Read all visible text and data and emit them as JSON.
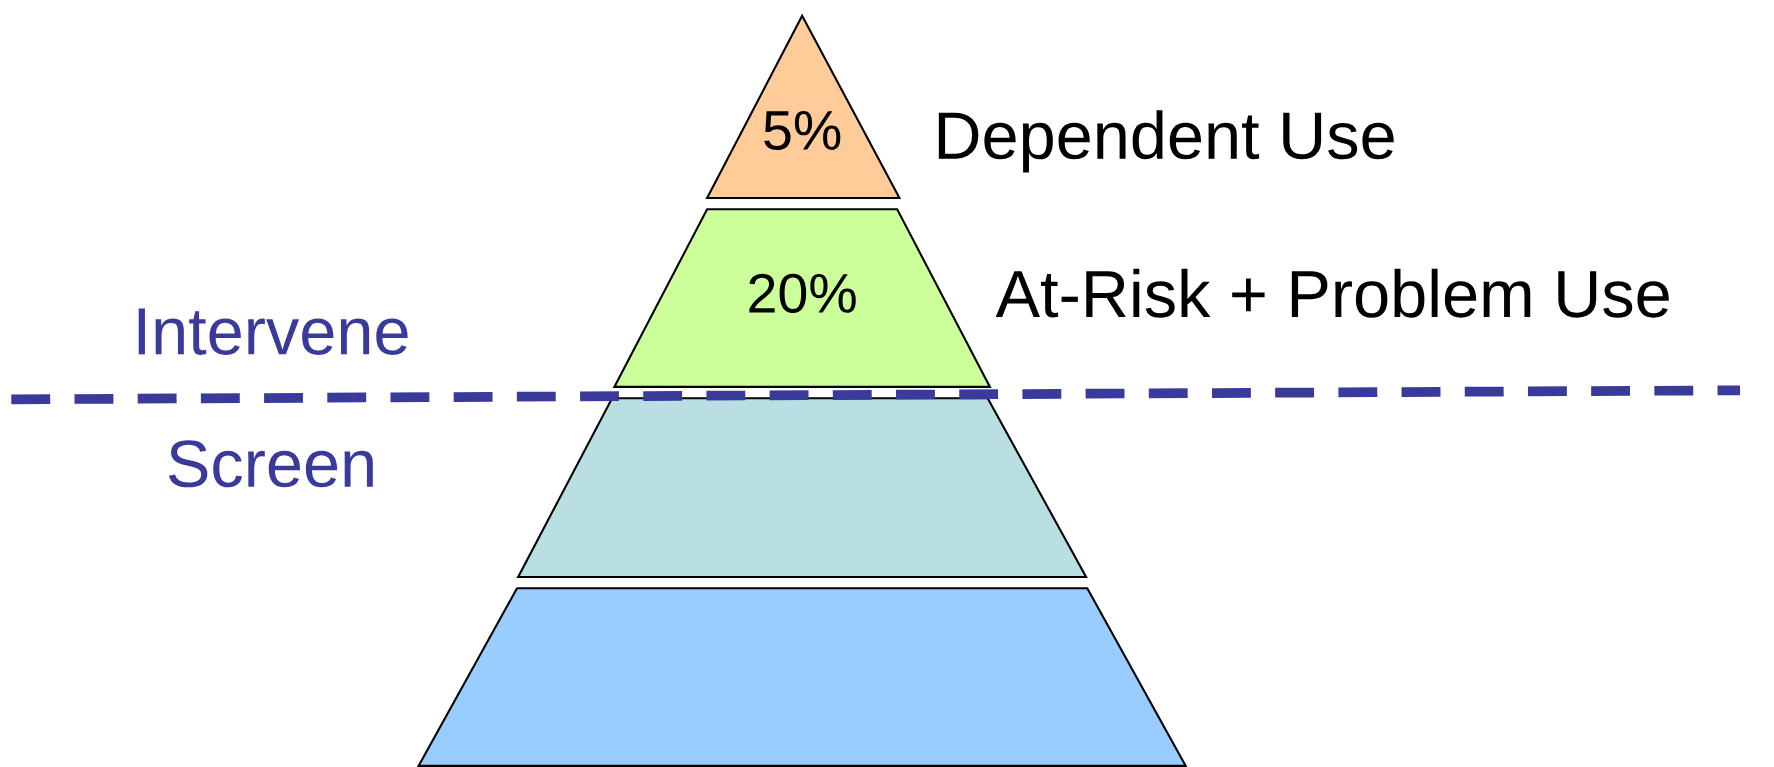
{
  "chart_data": {
    "type": "other",
    "categories": [
      "Dependent Use",
      "At-Risk + Problem Use",
      null,
      null
    ],
    "values": [
      5,
      20,
      null,
      null
    ],
    "value_labels": [
      "5%",
      "20%",
      null,
      null
    ],
    "colors": [
      "#ffcc99",
      "#ccff99",
      "#b9dfe3",
      "#99ccff"
    ],
    "annotations": [
      "Intervene",
      "Screen"
    ]
  }
}
